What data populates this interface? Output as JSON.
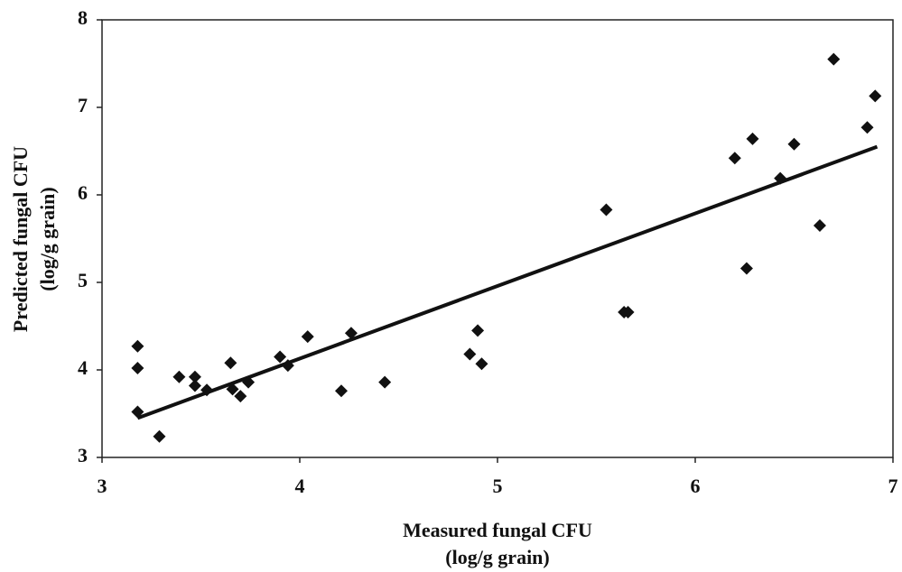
{
  "chart_data": {
    "type": "scatter",
    "xlabel": [
      "Measured fungal CFU",
      "(log/g grain)"
    ],
    "ylabel": [
      "Predicted fungal CFU",
      "(log/g grain)"
    ],
    "xlim": [
      3,
      7
    ],
    "xticks": [
      3,
      4,
      5,
      6,
      7
    ],
    "ylim": [
      3,
      8
    ],
    "yticks": [
      3,
      4,
      5,
      6,
      7,
      8
    ],
    "color": "#111111",
    "series": [
      {
        "x": [
          3.18,
          3.18,
          3.18,
          3.29,
          3.39,
          3.47,
          3.47,
          3.53,
          3.65,
          3.66,
          3.7,
          3.74,
          3.9,
          3.94,
          4.04,
          4.21,
          4.26,
          4.43,
          4.86,
          4.9,
          4.92,
          5.55,
          5.64,
          5.66,
          6.2,
          6.26,
          6.29,
          6.43,
          6.5,
          6.63,
          6.7,
          6.87,
          6.91
        ],
        "values": [
          4.27,
          4.02,
          3.52,
          3.24,
          3.92,
          3.92,
          3.82,
          3.77,
          4.08,
          3.78,
          3.7,
          3.86,
          4.15,
          4.05,
          4.38,
          3.76,
          4.42,
          3.86,
          4.18,
          4.45,
          4.07,
          5.83,
          4.66,
          4.66,
          6.42,
          5.16,
          6.64,
          6.19,
          6.58,
          5.65,
          7.55,
          6.77,
          7.13
        ]
      }
    ],
    "trendline": {
      "x": [
        3.18,
        6.92
      ],
      "values": [
        3.45,
        6.55
      ]
    }
  }
}
